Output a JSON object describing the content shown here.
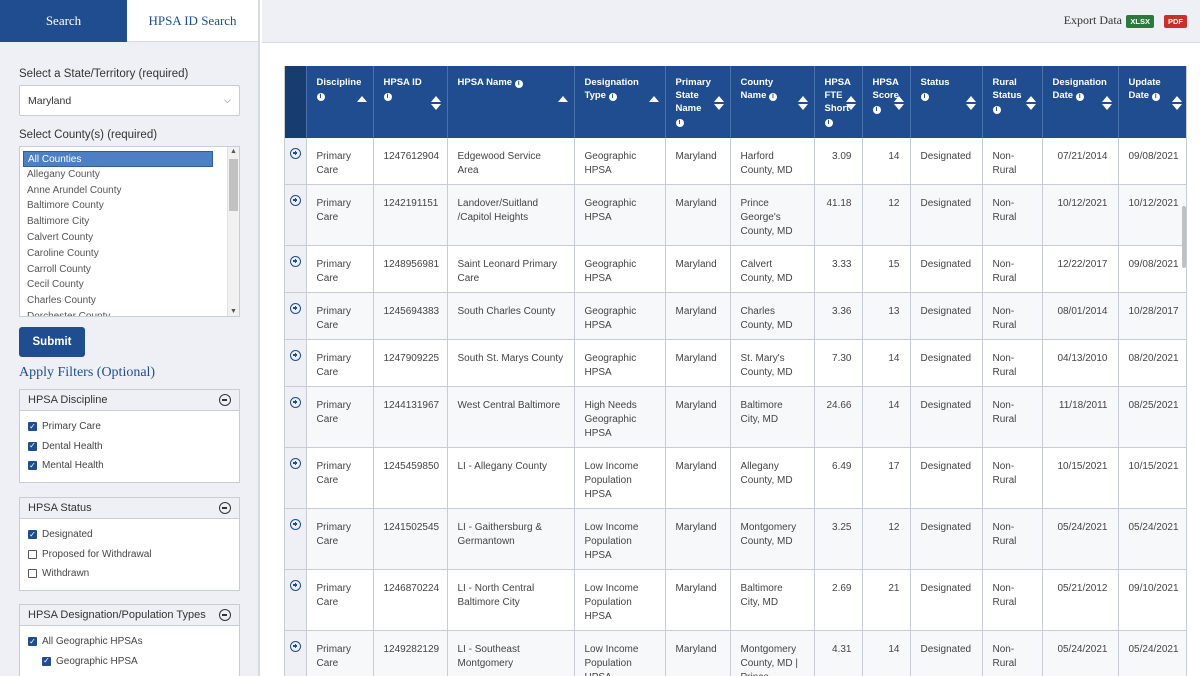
{
  "tabs": {
    "search": "Search",
    "id_search": "HPSA ID Search"
  },
  "form": {
    "state_label": "Select a State/Territory (required)",
    "state_value": "Maryland",
    "county_label": "Select County(s) (required)",
    "counties": [
      "All Counties",
      "Allegany County",
      "Anne Arundel County",
      "Baltimore County",
      "Baltimore City",
      "Calvert County",
      "Caroline County",
      "Carroll County",
      "Cecil County",
      "Charles County",
      "Dorchester County"
    ],
    "submit": "Submit",
    "apply_filters": "Apply Filters (Optional)"
  },
  "filters": [
    {
      "title": "HPSA Discipline",
      "items": [
        {
          "label": "Primary Care",
          "checked": true
        },
        {
          "label": "Dental Health",
          "checked": true
        },
        {
          "label": "Mental Health",
          "checked": true
        }
      ]
    },
    {
      "title": "HPSA Status",
      "items": [
        {
          "label": "Designated",
          "checked": true
        },
        {
          "label": "Proposed for Withdrawal",
          "checked": false
        },
        {
          "label": "Withdrawn",
          "checked": false
        }
      ]
    },
    {
      "title": "HPSA Designation/Population Types",
      "items": [
        {
          "label": "All Geographic HPSAs",
          "checked": true
        },
        {
          "label": "Geographic HPSA",
          "checked": true,
          "sub": true
        }
      ]
    }
  ],
  "export": {
    "label": "Export Data",
    "xlsx": "XLSX",
    "pdf": "PDF"
  },
  "table": {
    "headers": [
      "Discipline",
      "HPSA ID",
      "HPSA Name",
      "Designation Type",
      "Primary State Name",
      "County Name",
      "HPSA FTE Short",
      "HPSA Score",
      "Status",
      "Rural Status",
      "Designation Date",
      "Update Date"
    ],
    "rows": [
      [
        "Primary Care",
        "1247612904",
        "Edgewood Service Area",
        "Geographic HPSA",
        "Maryland",
        "Harford County, MD",
        "3.09",
        "14",
        "Designated",
        "Non-Rural",
        "07/21/2014",
        "09/08/2021"
      ],
      [
        "Primary Care",
        "1242191151",
        "Landover/Suitland /Capitol Heights",
        "Geographic HPSA",
        "Maryland",
        "Prince George's County, MD",
        "41.18",
        "12",
        "Designated",
        "Non-Rural",
        "10/12/2021",
        "10/12/2021"
      ],
      [
        "Primary Care",
        "1248956981",
        "Saint Leonard Primary Care",
        "Geographic HPSA",
        "Maryland",
        "Calvert County, MD",
        "3.33",
        "15",
        "Designated",
        "Non-Rural",
        "12/22/2017",
        "09/08/2021"
      ],
      [
        "Primary Care",
        "1245694383",
        "South Charles County",
        "Geographic HPSA",
        "Maryland",
        "Charles County, MD",
        "3.36",
        "13",
        "Designated",
        "Non-Rural",
        "08/01/2014",
        "10/28/2017"
      ],
      [
        "Primary Care",
        "1247909225",
        "South St. Marys County",
        "Geographic HPSA",
        "Maryland",
        "St. Mary's County, MD",
        "7.30",
        "14",
        "Designated",
        "Non-Rural",
        "04/13/2010",
        "08/20/2021"
      ],
      [
        "Primary Care",
        "1244131967",
        "West Central Baltimore",
        "High Needs Geographic HPSA",
        "Maryland",
        "Baltimore City, MD",
        "24.66",
        "14",
        "Designated",
        "Non-Rural",
        "11/18/2011",
        "08/25/2021"
      ],
      [
        "Primary Care",
        "1245459850",
        "LI - Allegany County",
        "Low Income Population HPSA",
        "Maryland",
        "Allegany County, MD",
        "6.49",
        "17",
        "Designated",
        "Non-Rural",
        "10/15/2021",
        "10/15/2021"
      ],
      [
        "Primary Care",
        "1241502545",
        "LI - Gaithersburg & Germantown",
        "Low Income Population HPSA",
        "Maryland",
        "Montgomery County, MD",
        "3.25",
        "12",
        "Designated",
        "Non-Rural",
        "05/24/2021",
        "05/24/2021"
      ],
      [
        "Primary Care",
        "1246870224",
        "LI - North Central Baltimore City",
        "Low Income Population HPSA",
        "Maryland",
        "Baltimore City, MD",
        "2.69",
        "21",
        "Designated",
        "Non-Rural",
        "05/21/2012",
        "09/10/2021"
      ],
      [
        "Primary Care",
        "1249282129",
        "LI - Southeast Montgomery",
        "Low Income Population HPSA",
        "Maryland",
        "Montgomery County, MD | Prince George's",
        "4.31",
        "14",
        "Designated",
        "Non-Rural",
        "05/24/2021",
        "05/24/2021"
      ]
    ]
  }
}
